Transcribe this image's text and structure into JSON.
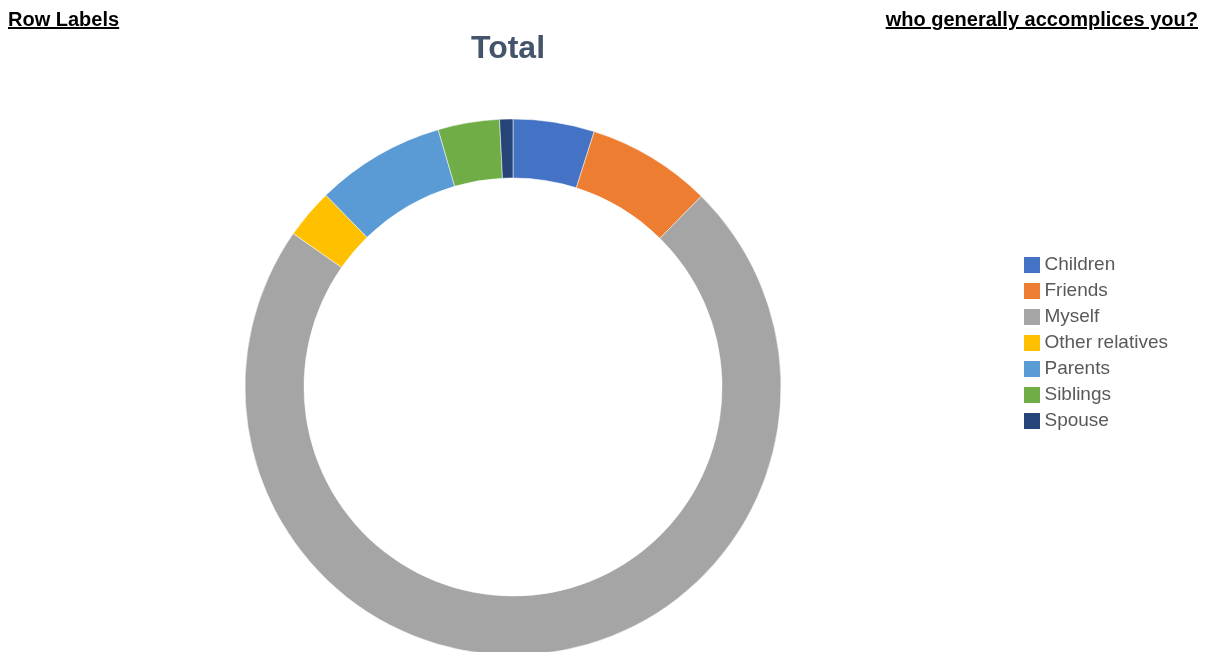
{
  "chart_data": {
    "type": "donut",
    "title": "Total",
    "annotations": [
      "Row Labels",
      "who generally accomplices you?"
    ],
    "categories": [
      "Children",
      "Friends",
      "Myself",
      "Other relatives",
      "Parents",
      "Siblings",
      "Spouse"
    ],
    "values": [
      4.9,
      7.5,
      72.3,
      3.0,
      7.8,
      3.7,
      0.8
    ],
    "colors": [
      "#4472c4",
      "#ed7d31",
      "#a5a5a5",
      "#ffc000",
      "#5b9bd5",
      "#70ad47",
      "#264478"
    ],
    "legend": "right"
  }
}
